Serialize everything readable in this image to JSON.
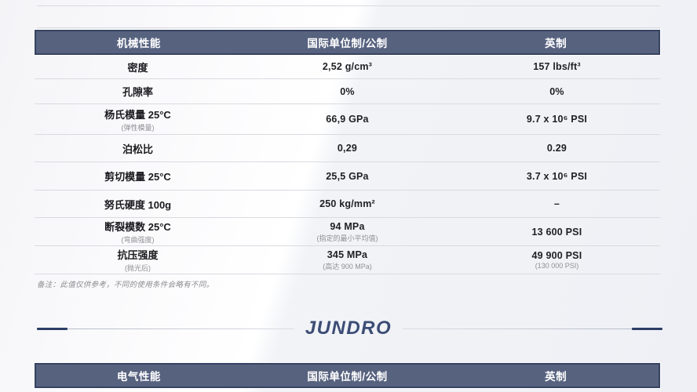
{
  "page": {
    "note": "备注：此值仅供参考，不同的使用条件会略有不同。",
    "brand": "JUNDRO"
  },
  "colors": {
    "header_bg": "#57627f",
    "header_border": "#374361",
    "accent_line": "#2c3d66",
    "brand_text": "#3c4c75"
  },
  "mechanical_table": {
    "headers": [
      "机械性能",
      "国际单位制/公制",
      "英制"
    ],
    "rows": [
      {
        "property": "密度",
        "metric": "2,52 g/cm³",
        "imperial": "157 lbs/ft³"
      },
      {
        "property": "孔隙率",
        "metric": "0%",
        "imperial": "0%"
      },
      {
        "property": "杨氏模量 25°C",
        "property_sub": "(弹性模量)",
        "metric": "66,9 GPa",
        "imperial": "9.7 x 10⁶ PSI"
      },
      {
        "property": "泊松比",
        "metric": "0,29",
        "imperial": "0.29"
      },
      {
        "property": "剪切模量 25°C",
        "metric": "25,5 GPa",
        "imperial": "3.7 x 10⁶ PSI"
      },
      {
        "property": "努氏硬度 100g",
        "metric": "250 kg/mm²",
        "imperial": "–"
      },
      {
        "property": "断裂模数 25°C",
        "property_sub": "(弯曲强度)",
        "metric": "94 MPa",
        "metric_sub": "(指定的最小平均值)",
        "imperial": "13 600 PSI"
      },
      {
        "property": "抗压强度",
        "property_sub": "(抛光后)",
        "metric": "345 MPa",
        "metric_sub": "(高达 900 MPa)",
        "imperial": "49 900 PSI",
        "imperial_sub": "(130 000 PSI)"
      }
    ]
  },
  "electrical_table": {
    "headers": [
      "电气性能",
      "国际单位制/公制",
      "英制"
    ]
  }
}
